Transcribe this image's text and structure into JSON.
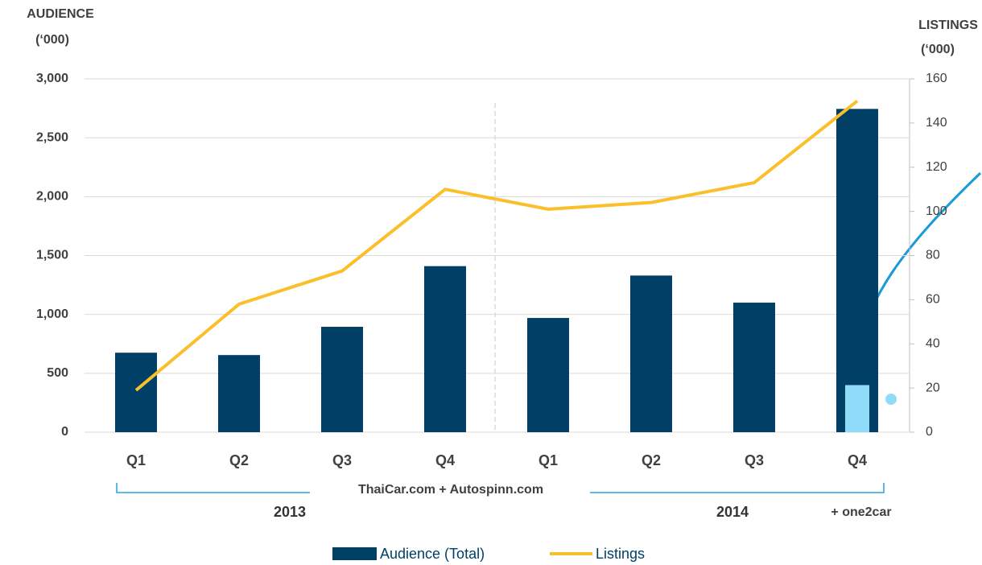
{
  "chart_data": {
    "type": "bar_line",
    "y_axis_title": "AUDIENCE",
    "y_axis_unit": "(‘000)",
    "y2_axis_title": "LISTINGS",
    "y2_axis_unit": "(‘000)",
    "categories": [
      "Q1",
      "Q2",
      "Q3",
      "Q4",
      "Q1",
      "Q2",
      "Q3",
      "Q4"
    ],
    "series": [
      {
        "name": "Audience (Total)",
        "color": "#003f66",
        "type": "bar",
        "values": [
          675,
          655,
          895,
          1410,
          970,
          1330,
          1100,
          2745
        ]
      },
      {
        "name": "Listings",
        "color": "#fbbf2b",
        "type": "line",
        "axis": "y2",
        "values": [
          19,
          58,
          73,
          110,
          101,
          104,
          113,
          150
        ]
      }
    ],
    "highlight": {
      "label": "+ one2car",
      "value": 400,
      "color": "#8fdcfa"
    },
    "bracket_label": "ThaiCar.com + Autospinn.com",
    "groups": [
      "2013",
      "2014"
    ],
    "ylim": [
      0,
      3000
    ],
    "yticks": [
      0,
      500,
      {
        "value": 1000,
        "label": "1,000"
      },
      {
        "value": 1500,
        "label": "1,500"
      },
      {
        "value": 2000,
        "label": "2,000"
      },
      {
        "value": 2500,
        "label": "2,500"
      },
      {
        "value": 3000,
        "label": "3,000"
      }
    ],
    "y2lim": [
      0,
      160
    ],
    "y2ticks": [
      0,
      20,
      40,
      60,
      80,
      100,
      120,
      140,
      160
    ],
    "grid": true
  }
}
